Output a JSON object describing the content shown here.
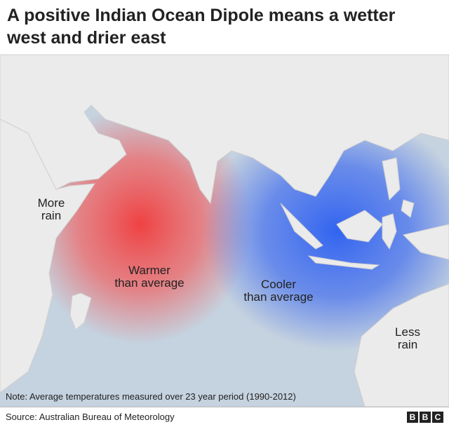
{
  "header": {
    "title": "A positive Indian Ocean Dipole means a wetter west and drier east"
  },
  "map": {
    "labels": [
      {
        "lines": [
          "More",
          "rain"
        ]
      },
      {
        "lines": [
          "Warmer",
          "than average"
        ]
      },
      {
        "lines": [
          "Cooler",
          "than average"
        ]
      },
      {
        "lines": [
          "Less",
          "rain"
        ]
      }
    ],
    "note": "Note: Average temperatures measured over 23 year period (1990-2012)"
  },
  "footer": {
    "source": "Source: Australian Bureau of Meteorology",
    "logo": [
      "B",
      "B",
      "C"
    ]
  }
}
